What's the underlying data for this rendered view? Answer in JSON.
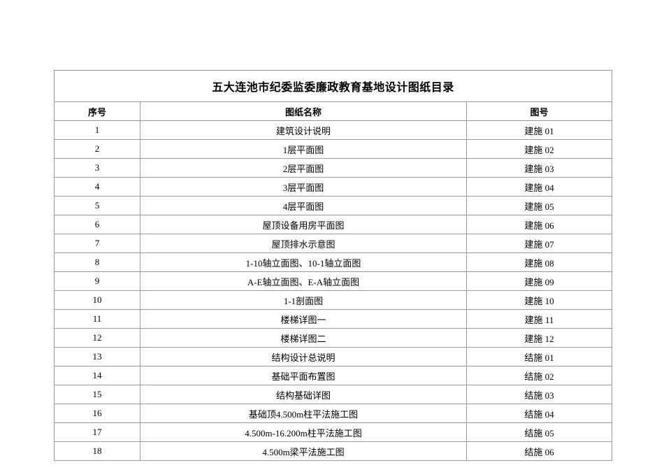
{
  "page": {
    "background_color": "#ffffff",
    "border_color": "#9a9a9a",
    "text_color": "#000000"
  },
  "table": {
    "title": "五大连池市纪委监委廉政教育基地设计图纸目录",
    "columns": [
      "序号",
      "图纸名称",
      "图号"
    ],
    "rows": [
      {
        "no": "1",
        "name": "建筑设计说明",
        "code": "建施 01"
      },
      {
        "no": "2",
        "name": "1层平面图",
        "code": "建施 02"
      },
      {
        "no": "3",
        "name": "2层平面图",
        "code": "建施 03"
      },
      {
        "no": "4",
        "name": "3层平面图",
        "code": "建施 04"
      },
      {
        "no": "5",
        "name": "4层平面图",
        "code": "建施 05"
      },
      {
        "no": "6",
        "name": "屋顶设备用房平面图",
        "code": "建施 06"
      },
      {
        "no": "7",
        "name": "屋顶排水示意图",
        "code": "建施 07"
      },
      {
        "no": "8",
        "name": "1-10轴立面图、10-1轴立面图",
        "code": "建施 08"
      },
      {
        "no": "9",
        "name": "A-E轴立面图、E-A轴立面图",
        "code": "建施 09"
      },
      {
        "no": "10",
        "name": "1-1剖面图",
        "code": "建施 10"
      },
      {
        "no": "11",
        "name": "楼梯详图一",
        "code": "建施 11"
      },
      {
        "no": "12",
        "name": "楼梯详图二",
        "code": "建施 12"
      },
      {
        "no": "13",
        "name": "结构设计总说明",
        "code": "结施 01"
      },
      {
        "no": "14",
        "name": "基础平面布置图",
        "code": "结施 02"
      },
      {
        "no": "15",
        "name": "结构基础详图",
        "code": "结施 03"
      },
      {
        "no": "16",
        "name": "基础顶4.500m柱平法施工图",
        "code": "结施 04"
      },
      {
        "no": "17",
        "name": "4.500m-16.200m柱平法施工图",
        "code": "结施 05"
      },
      {
        "no": "18",
        "name": "4.500m梁平法施工图",
        "code": "结施 06"
      }
    ]
  }
}
